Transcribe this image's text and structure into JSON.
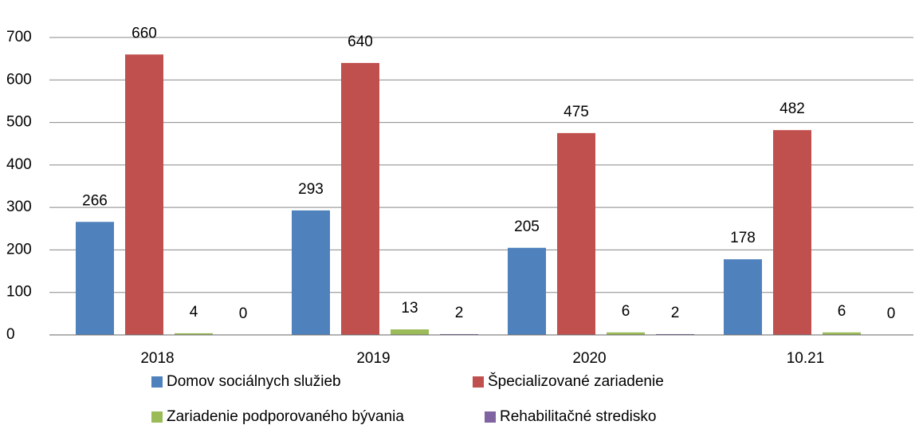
{
  "chart_data": {
    "type": "bar",
    "categories": [
      "2018",
      "2019",
      "2020",
      "10.21"
    ],
    "series": [
      {
        "name": "Domov sociálnych služieb",
        "color": "#4f81bd",
        "values": [
          266,
          293,
          205,
          178
        ]
      },
      {
        "name": "Špecializované zariadenie",
        "color": "#c0504d",
        "values": [
          660,
          640,
          475,
          482
        ]
      },
      {
        "name": "Zariadenie podporovaného bývania",
        "color": "#9bbb59",
        "values": [
          4,
          13,
          6,
          6
        ]
      },
      {
        "name": "Rehabilitačné stredisko",
        "color": "#8064a2",
        "values": [
          0,
          2,
          2,
          0
        ]
      }
    ],
    "ylim": [
      0,
      700
    ],
    "yticks": [
      0,
      100,
      200,
      300,
      400,
      500,
      600,
      700
    ],
    "grid": true,
    "legend": "bottom"
  }
}
